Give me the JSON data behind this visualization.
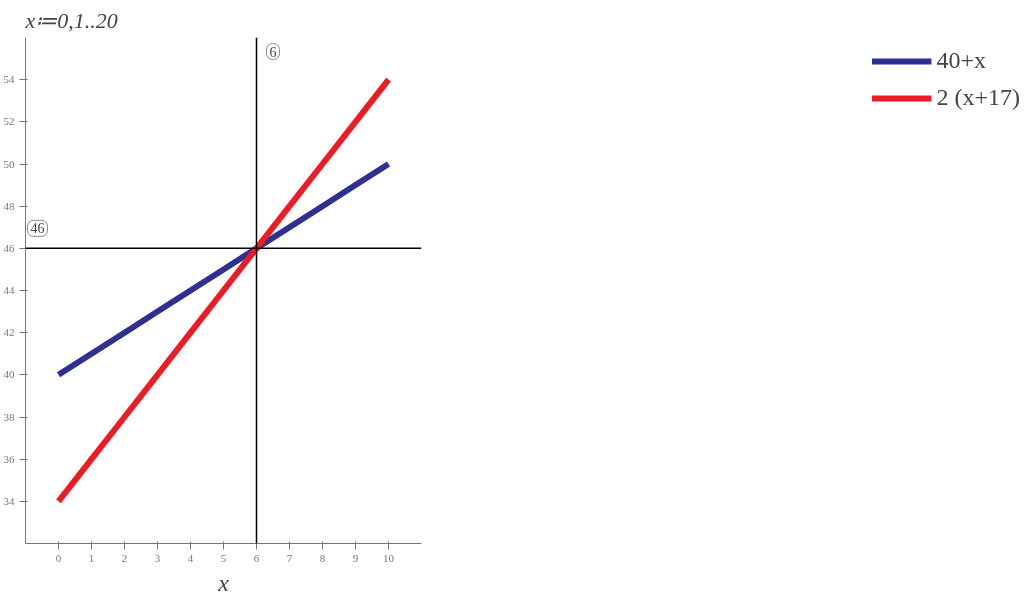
{
  "chart_data": {
    "type": "line",
    "annotations": [
      "x≔0,1..20"
    ],
    "xlabel": "x",
    "x": [
      0,
      1,
      2,
      3,
      4,
      5,
      6,
      7,
      8,
      9,
      10
    ],
    "series": [
      {
        "name": "40+x",
        "color": "#2e3192",
        "values": [
          40,
          41,
          42,
          43,
          44,
          45,
          46,
          47,
          48,
          49,
          50
        ]
      },
      {
        "name": "2 (x+17)",
        "color": "#ed1c24",
        "values": [
          34,
          36,
          38,
          40,
          42,
          44,
          46,
          48,
          50,
          52,
          54
        ]
      }
    ],
    "xlim": [
      -1,
      11
    ],
    "ylim": [
      32,
      56
    ],
    "xticks": [
      0,
      1,
      2,
      3,
      4,
      5,
      6,
      7,
      8,
      9,
      10
    ],
    "yticks": [
      34,
      36,
      38,
      40,
      42,
      44,
      46,
      48,
      50,
      52,
      54
    ],
    "ref_lines": [
      {
        "axis": "x",
        "value": 6,
        "label": "6",
        "color": "#000000"
      },
      {
        "axis": "y",
        "value": 46,
        "label": "46",
        "color": "#000000"
      }
    ],
    "grid": false,
    "legend": "right",
    "line_style": "solid",
    "marker": "none"
  }
}
